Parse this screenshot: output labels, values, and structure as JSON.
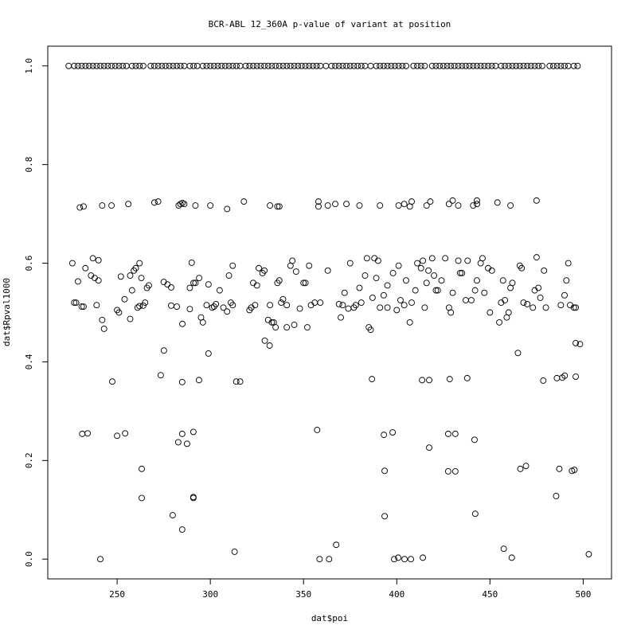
{
  "chart_data": {
    "type": "scatter",
    "title": "BCR-ABL 12_360A p-value of variant at position",
    "xlabel": "dat$poi",
    "ylabel": "dat$Rpval1000",
    "xlim": [
      212.8,
      515.2
    ],
    "ylim": [
      -0.04,
      1.04
    ],
    "xticks": [
      250,
      300,
      350,
      400,
      450,
      500
    ],
    "yticks": [
      {
        "value": 0,
        "label": "0.0"
      },
      {
        "value": 0.2,
        "label": "0.2"
      },
      {
        "value": 0.4,
        "label": "0.4"
      },
      {
        "value": 0.6,
        "label": "0.6"
      },
      {
        "value": 0.8,
        "label": "0.8"
      },
      {
        "value": 1,
        "label": "1.0"
      }
    ],
    "color": "#000000",
    "x": [
      224,
      227,
      229,
      231,
      233,
      235,
      237,
      239,
      241,
      243,
      245,
      247,
      249,
      251,
      253,
      255,
      258,
      260,
      262,
      264,
      268,
      270,
      272,
      274,
      276,
      278,
      280,
      282,
      284,
      286,
      289,
      291,
      293,
      296,
      298,
      300,
      302,
      304,
      306,
      308,
      310,
      312,
      314,
      316,
      319,
      321,
      323,
      325,
      327,
      329,
      331,
      333,
      335,
      337,
      339,
      341,
      343,
      345,
      347,
      349,
      351,
      353,
      355,
      357,
      359,
      362,
      365,
      367,
      369,
      371,
      373,
      375,
      377,
      379,
      381,
      383,
      386,
      389,
      391,
      393,
      395,
      397,
      399,
      401,
      403,
      405,
      409,
      411,
      413,
      415,
      419,
      421,
      423,
      425,
      427,
      429,
      431,
      433,
      435,
      437,
      439,
      441,
      443,
      445,
      447,
      449,
      451,
      453,
      456,
      458,
      460,
      462,
      464,
      466,
      468,
      470,
      472,
      474,
      476,
      478,
      482,
      484,
      486,
      488,
      490,
      492,
      495,
      497,
      230,
      232,
      242,
      247,
      256,
      270,
      272,
      283,
      284,
      285,
      286,
      292,
      300,
      309,
      318,
      332,
      336,
      337,
      358,
      358,
      363,
      367,
      373,
      380,
      391,
      401,
      404,
      407,
      408,
      416,
      418,
      428,
      430,
      433,
      441,
      443,
      443,
      454,
      461,
      475,
      226,
      227,
      228,
      229,
      231,
      232,
      233,
      236,
      237,
      238,
      239,
      240,
      240,
      242,
      243,
      250,
      251,
      252,
      254,
      257,
      257,
      258,
      259,
      260,
      261,
      262,
      262,
      263,
      264,
      265,
      266,
      267,
      275,
      277,
      279,
      279,
      282,
      285,
      289,
      289,
      290,
      291,
      292,
      294,
      295,
      296,
      298,
      299,
      301,
      302,
      303,
      305,
      307,
      309,
      310,
      311,
      312,
      312,
      321,
      322,
      323,
      324,
      325,
      326,
      328,
      329,
      331,
      332,
      333,
      334,
      335,
      336,
      337,
      338,
      339,
      341,
      341,
      343,
      344,
      345,
      346,
      348,
      350,
      351,
      352,
      353,
      354,
      356,
      359,
      363,
      369,
      370,
      371,
      372,
      374,
      375,
      377,
      378,
      380,
      381,
      383,
      384,
      385,
      386,
      387,
      388,
      389,
      390,
      391,
      393,
      395,
      395,
      398,
      400,
      401,
      402,
      404,
      405,
      407,
      408,
      410,
      411,
      413,
      414,
      415,
      416,
      417,
      419,
      420,
      421,
      422,
      424,
      426,
      428,
      429,
      430,
      433,
      434,
      435,
      437,
      438,
      440,
      442,
      443,
      445,
      446,
      447,
      449,
      450,
      451,
      455,
      456,
      457,
      458,
      459,
      460,
      461,
      462,
      466,
      467,
      468,
      470,
      473,
      474,
      475,
      476,
      477,
      479,
      480,
      488,
      490,
      491,
      492,
      493,
      495,
      496,
      247.4,
      273.4,
      275.1,
      284.9,
      293.9,
      299,
      313.9,
      316,
      329.2,
      331.8,
      386.7,
      413.6,
      417.4,
      428.4,
      437.8,
      465,
      478.6,
      485.9,
      488.8,
      490.1,
      496,
      496,
      498.3,
      231.3,
      234.2,
      250,
      254.3,
      263.2,
      263.2,
      279.8,
      282.8,
      284.9,
      284.9,
      287.5,
      290.9,
      290.9,
      290.9,
      241,
      313,
      357.3,
      358.6,
      363.7,
      367.5,
      393.1,
      393.5,
      393.5,
      398.6,
      400.8,
      397.8,
      404.2,
      407.6,
      414,
      417.4,
      427.6,
      431.4,
      427.6,
      431.4,
      442.1,
      441.7,
      457.4,
      461.7,
      466.3,
      469.3,
      485.5,
      487.2,
      494,
      495.3,
      503
    ],
    "values": [
      1,
      1,
      1,
      1,
      1,
      1,
      1,
      1,
      1,
      1,
      1,
      1,
      1,
      1,
      1,
      1,
      1,
      1,
      1,
      1,
      1,
      1,
      1,
      1,
      1,
      1,
      1,
      1,
      1,
      1,
      1,
      1,
      1,
      1,
      1,
      1,
      1,
      1,
      1,
      1,
      1,
      1,
      1,
      1,
      1,
      1,
      1,
      1,
      1,
      1,
      1,
      1,
      1,
      1,
      1,
      1,
      1,
      1,
      1,
      1,
      1,
      1,
      1,
      1,
      1,
      1,
      1,
      1,
      1,
      1,
      1,
      1,
      1,
      1,
      1,
      1,
      1,
      1,
      1,
      1,
      1,
      1,
      1,
      1,
      1,
      1,
      1,
      1,
      1,
      1,
      1,
      1,
      1,
      1,
      1,
      1,
      1,
      1,
      1,
      1,
      1,
      1,
      1,
      1,
      1,
      1,
      1,
      1,
      1,
      1,
      1,
      1,
      1,
      1,
      1,
      1,
      1,
      1,
      1,
      1,
      1,
      1,
      1,
      1,
      1,
      1,
      1,
      1,
      0.713,
      0.715,
      0.717,
      0.717,
      0.72,
      0.723,
      0.725,
      0.717,
      0.72,
      0.722,
      0.72,
      0.717,
      0.717,
      0.71,
      0.725,
      0.717,
      0.715,
      0.715,
      0.725,
      0.715,
      0.717,
      0.72,
      0.72,
      0.717,
      0.717,
      0.717,
      0.72,
      0.715,
      0.725,
      0.717,
      0.725,
      0.72,
      0.727,
      0.717,
      0.717,
      0.727,
      0.72,
      0.723,
      0.717,
      0.727,
      0.6,
      0.52,
      0.52,
      0.563,
      0.512,
      0.512,
      0.59,
      0.575,
      0.61,
      0.57,
      0.515,
      0.606,
      0.565,
      0.485,
      0.467,
      0.505,
      0.5,
      0.573,
      0.527,
      0.575,
      0.487,
      0.545,
      0.585,
      0.59,
      0.51,
      0.6,
      0.513,
      0.57,
      0.514,
      0.52,
      0.55,
      0.555,
      0.562,
      0.557,
      0.551,
      0.514,
      0.512,
      0.477,
      0.55,
      0.507,
      0.601,
      0.56,
      0.56,
      0.57,
      0.49,
      0.48,
      0.515,
      0.557,
      0.51,
      0.512,
      0.517,
      0.545,
      0.51,
      0.502,
      0.575,
      0.52,
      0.595,
      0.515,
      0.505,
      0.51,
      0.56,
      0.515,
      0.555,
      0.59,
      0.58,
      0.585,
      0.485,
      0.515,
      0.48,
      0.48,
      0.47,
      0.56,
      0.565,
      0.52,
      0.527,
      0.47,
      0.515,
      0.595,
      0.605,
      0.475,
      0.583,
      0.508,
      0.56,
      0.56,
      0.47,
      0.595,
      0.515,
      0.52,
      0.52,
      0.585,
      0.517,
      0.49,
      0.515,
      0.54,
      0.508,
      0.6,
      0.51,
      0.515,
      0.55,
      0.52,
      0.575,
      0.61,
      0.47,
      0.465,
      0.53,
      0.61,
      0.57,
      0.605,
      0.51,
      0.535,
      0.555,
      0.51,
      0.58,
      0.505,
      0.595,
      0.525,
      0.515,
      0.565,
      0.48,
      0.52,
      0.545,
      0.6,
      0.59,
      0.605,
      0.51,
      0.56,
      0.585,
      0.61,
      0.575,
      0.545,
      0.545,
      0.565,
      0.61,
      0.51,
      0.5,
      0.54,
      0.605,
      0.58,
      0.58,
      0.525,
      0.605,
      0.525,
      0.545,
      0.565,
      0.6,
      0.61,
      0.54,
      0.59,
      0.5,
      0.585,
      0.48,
      0.52,
      0.565,
      0.525,
      0.49,
      0.5,
      0.55,
      0.56,
      0.595,
      0.59,
      0.52,
      0.517,
      0.51,
      0.545,
      0.612,
      0.55,
      0.53,
      0.585,
      0.51,
      0.515,
      0.535,
      0.565,
      0.6,
      0.515,
      0.51,
      0.51,
      0.36,
      0.373,
      0.423,
      0.359,
      0.363,
      0.417,
      0.36,
      0.36,
      0.443,
      0.433,
      0.365,
      0.363,
      0.363,
      0.365,
      0.367,
      0.418,
      0.362,
      0.367,
      0.368,
      0.372,
      0.37,
      0.438,
      0.436,
      0.254,
      0.255,
      0.25,
      0.255,
      0.183,
      0.124,
      0.089,
      0.237,
      0.254,
      0.06,
      0.234,
      0.258,
      0.126,
      0.124,
      0,
      0.015,
      0.262,
      0,
      0,
      0.029,
      0.252,
      0.179,
      0.087,
      0,
      0.003,
      0.257,
      0,
      0,
      0.003,
      0.226,
      0.254,
      0.254,
      0.178,
      0.178,
      0.092,
      0.242,
      0.021,
      0.003,
      0.183,
      0.189,
      0.128,
      0.183,
      0.179,
      0.181,
      0.01
    ]
  }
}
